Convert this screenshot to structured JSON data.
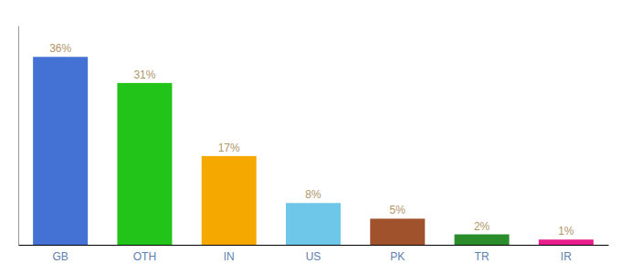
{
  "chart_data": {
    "type": "bar",
    "categories": [
      "GB",
      "OTH",
      "IN",
      "US",
      "PK",
      "TR",
      "IR"
    ],
    "values": [
      36,
      31,
      17,
      8,
      5,
      2,
      1
    ],
    "value_labels": [
      "36%",
      "31%",
      "17%",
      "8%",
      "5%",
      "2%",
      "1%"
    ],
    "colors": [
      "#4472d4",
      "#22c41a",
      "#f5a800",
      "#6ec6e8",
      "#a0522d",
      "#2a8c2a",
      "#e91e8c"
    ],
    "ylim": [
      0,
      42
    ],
    "data_labels": true,
    "tick_labels": "x",
    "grid": false
  }
}
